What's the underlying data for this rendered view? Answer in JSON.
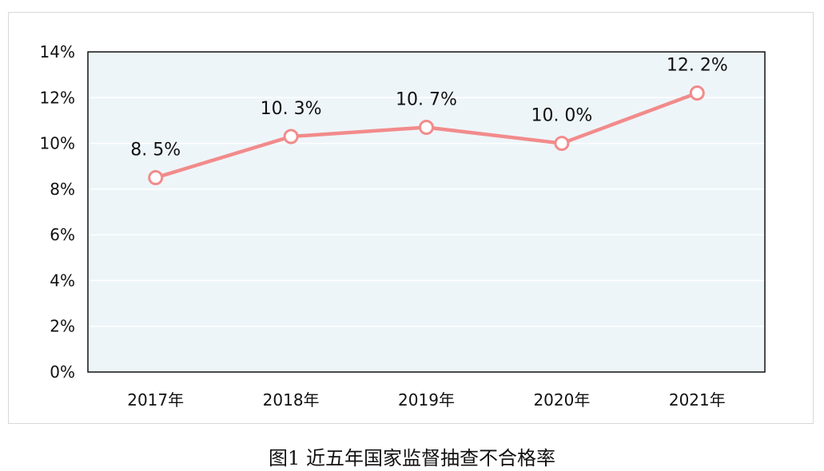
{
  "caption": "图1 近五年国家监督抽查不合格率",
  "chart_data": {
    "type": "line",
    "categories": [
      "2017年",
      "2018年",
      "2019年",
      "2020年",
      "2021年"
    ],
    "series": [
      {
        "values": [
          8.5,
          10.3,
          10.7,
          10.0,
          12.2
        ]
      }
    ],
    "data_labels": [
      "8. 5%",
      "10. 3%",
      "10. 7%",
      "10. 0%",
      "12. 2%"
    ],
    "y_ticks": [
      0,
      2,
      4,
      6,
      8,
      10,
      12,
      14
    ],
    "y_tick_labels": [
      "0%",
      "2%",
      "4%",
      "6%",
      "8%",
      "10%",
      "12%",
      "14%"
    ],
    "ylim": [
      0,
      14
    ],
    "grid": true,
    "colors": {
      "line": "#f28b8b",
      "marker_fill": "#ffffff",
      "plot_background": "#eef5f9",
      "gridline": "#ffffff",
      "axis": "#111111"
    }
  }
}
